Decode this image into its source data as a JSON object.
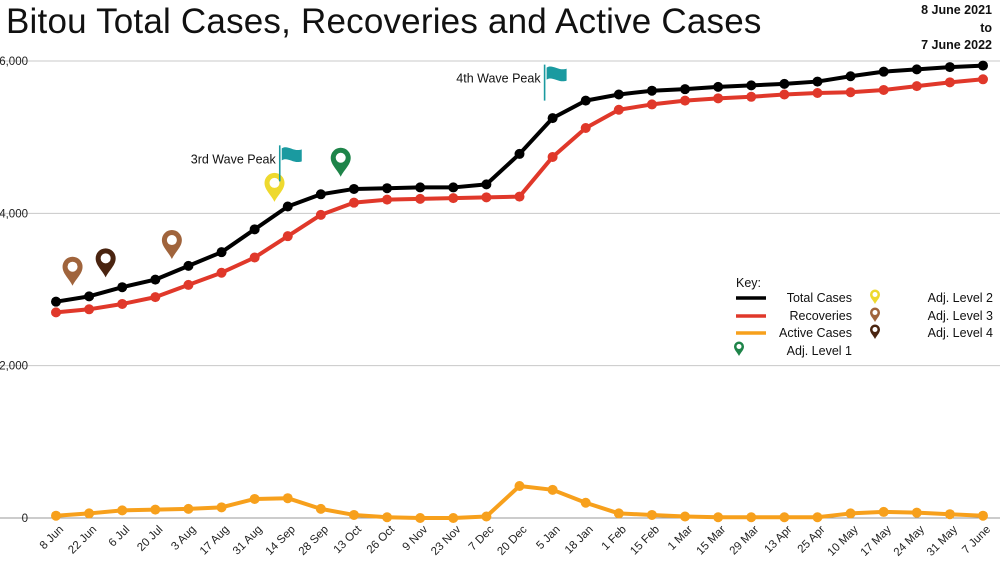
{
  "title": "Bitou Total Cases, Recoveries and Active Cases",
  "date_range": {
    "start": "8 June 2021",
    "connector": "to",
    "end": "7 June 2022"
  },
  "chart_data": {
    "type": "line",
    "title": "Bitou Total Cases, Recoveries and Active Cases",
    "xlabel": "",
    "ylabel": "",
    "ylim": [
      0,
      6000
    ],
    "yticks": [
      0,
      2000,
      4000,
      6000
    ],
    "ytick_labels": [
      "0",
      "2,000",
      "4,000",
      "6,000"
    ],
    "grid": true,
    "legend_title": "Key:",
    "legend_position": "right",
    "categories": [
      "8 Jun",
      "22 Jun",
      "6 Jul",
      "20 Jul",
      "3 Aug",
      "17 Aug",
      "31 Aug",
      "14 Sep",
      "28 Sep",
      "13 Oct",
      "26 Oct",
      "9 Nov",
      "23 Nov",
      "7 Dec",
      "20 Dec",
      "5 Jan",
      "18 Jan",
      "1 Feb",
      "15 Feb",
      "1 Mar",
      "15 Mar",
      "29 Mar",
      "13 Apr",
      "25 Apr",
      "10 May",
      "17 May",
      "24 May",
      "31 May",
      "7 June"
    ],
    "series": [
      {
        "name": "Total Cases",
        "color": "#000000",
        "values": [
          2840,
          2910,
          3030,
          3130,
          3310,
          3490,
          3790,
          4090,
          4250,
          4320,
          4330,
          4340,
          4340,
          4380,
          4780,
          5250,
          5480,
          5560,
          5610,
          5630,
          5660,
          5680,
          5700,
          5730,
          5800,
          5860,
          5890,
          5920,
          5940
        ]
      },
      {
        "name": "Recoveries",
        "color": "#e0382a",
        "values": [
          2700,
          2740,
          2810,
          2900,
          3060,
          3220,
          3420,
          3700,
          3980,
          4140,
          4180,
          4190,
          4200,
          4210,
          4220,
          4740,
          5120,
          5360,
          5430,
          5480,
          5510,
          5530,
          5560,
          5580,
          5590,
          5620,
          5670,
          5720,
          5760
        ]
      },
      {
        "name": "Active Cases",
        "color": "#f7a01c",
        "values": [
          30,
          60,
          100,
          110,
          120,
          140,
          250,
          260,
          120,
          40,
          10,
          0,
          0,
          20,
          420,
          370,
          200,
          60,
          40,
          20,
          10,
          10,
          10,
          10,
          60,
          80,
          70,
          50,
          30
        ]
      }
    ],
    "markers": [
      {
        "name": "Adj. Level 1",
        "color": "#1e8449",
        "icon": "pin-icon",
        "x_index": 8.6,
        "y_value": 4480
      },
      {
        "name": "Adj. Level 2",
        "color": "#eed92e",
        "icon": "pin-icon",
        "x_index": 6.6,
        "y_value": 4150
      },
      {
        "name": "Adj. Level 3",
        "color": "#a0643c",
        "icon": "pin-icon",
        "x_index": 0.5,
        "y_value": 3050
      },
      {
        "name": "Adj. Level 3",
        "color": "#a0643c",
        "icon": "pin-icon",
        "x_index": 3.5,
        "y_value": 3400
      },
      {
        "name": "Adj. Level 4",
        "color": "#4a2410",
        "icon": "pin-icon",
        "x_index": 1.5,
        "y_value": 3160
      }
    ],
    "annotations": [
      {
        "text": "3rd Wave Peak",
        "icon": "flag-icon",
        "flag_color": "#1a9aa0",
        "x_index": 7,
        "y_value": 4420
      },
      {
        "text": "4th Wave Peak",
        "icon": "flag-icon",
        "flag_color": "#1a9aa0",
        "x_index": 15,
        "y_value": 5480
      }
    ]
  }
}
